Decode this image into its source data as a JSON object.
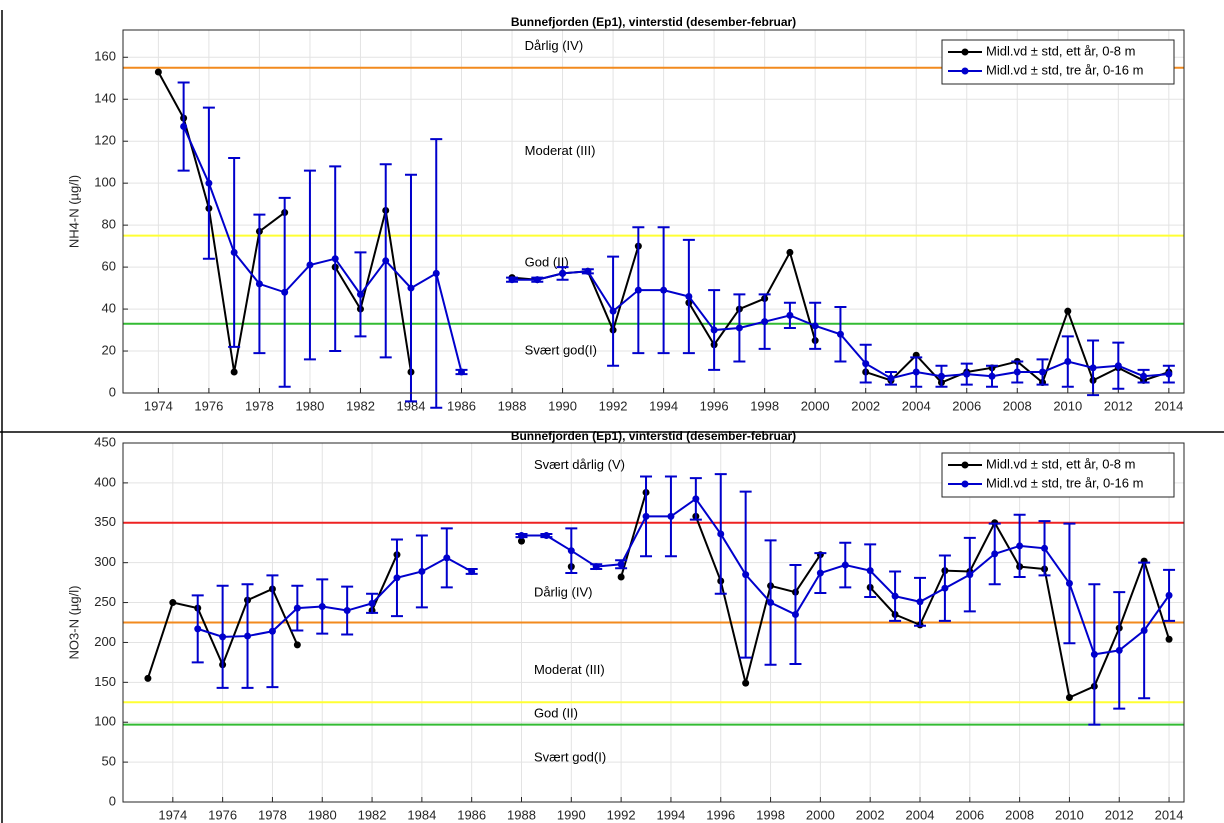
{
  "chart_data": [
    {
      "type": "line",
      "title": "Bunnefjorden (Ep1), vinterstid (desember-februar)",
      "ylabel": "NH4-N (µg/l)",
      "x": [
        1973,
        1974,
        1975,
        1976,
        1977,
        1978,
        1979,
        1980,
        1981,
        1982,
        1983,
        1984,
        1985,
        1986,
        1987,
        1988,
        1989,
        1990,
        1991,
        1992,
        1993,
        1994,
        1995,
        1996,
        1997,
        1998,
        1999,
        2000,
        2001,
        2002,
        2003,
        2004,
        2005,
        2006,
        2007,
        2008,
        2009,
        2010,
        2011,
        2012,
        2013,
        2014
      ],
      "series": [
        {
          "name": "Midl.vd ± std, ett år, 0-8 m",
          "color": "#000000",
          "values": [
            null,
            153,
            131,
            88,
            10,
            77,
            86,
            null,
            60,
            40,
            87,
            10,
            null,
            null,
            null,
            55,
            54,
            57,
            58,
            30,
            70,
            null,
            43,
            23,
            40,
            45,
            67,
            25,
            null,
            10,
            6,
            18,
            5,
            10,
            12,
            15,
            5,
            39,
            6,
            12,
            6,
            10
          ]
        },
        {
          "name": "Midl.vd ± std, tre år, 0-16 m",
          "color": "#0000cc",
          "values": [
            null,
            null,
            127,
            100,
            67,
            52,
            48,
            61,
            64,
            47,
            63,
            50,
            57,
            10,
            null,
            54,
            54,
            57,
            58,
            39,
            49,
            49,
            46,
            30,
            31,
            34,
            37,
            32,
            28,
            14,
            7,
            10,
            8,
            9,
            8,
            10,
            10,
            15,
            12,
            13,
            8,
            9
          ],
          "errors": [
            null,
            null,
            21,
            36,
            45,
            33,
            45,
            45,
            44,
            20,
            46,
            54,
            64,
            1,
            null,
            1,
            1,
            3,
            1,
            26,
            30,
            30,
            27,
            19,
            16,
            13,
            6,
            11,
            13,
            9,
            3,
            7,
            5,
            5,
            5,
            5,
            6,
            12,
            13,
            11,
            3,
            4
          ]
        }
      ],
      "hlines": [
        {
          "value": 155,
          "color": "#f28a1e"
        },
        {
          "value": 75,
          "color": "#ffff33"
        },
        {
          "value": 33,
          "color": "#33bb33"
        }
      ],
      "annotations": [
        {
          "text": "Dårlig (IV)",
          "x": 1988.5,
          "y": 165
        },
        {
          "text": "Moderat (III)",
          "x": 1988.5,
          "y": 115
        },
        {
          "text": "God (II)",
          "x": 1988.5,
          "y": 62
        },
        {
          "text": "Svært god(I)",
          "x": 1988.5,
          "y": 20
        }
      ],
      "xlim": [
        1972.6,
        2014.6
      ],
      "xticks": [
        1974,
        1976,
        1978,
        1980,
        1982,
        1984,
        1986,
        1988,
        1990,
        1992,
        1994,
        1996,
        1998,
        2000,
        2002,
        2004,
        2006,
        2008,
        2010,
        2012,
        2014
      ],
      "ylim": [
        0,
        173
      ],
      "yticks": [
        0,
        20,
        40,
        60,
        80,
        100,
        120,
        140,
        160
      ],
      "grid": true,
      "legend": "upper right"
    },
    {
      "type": "line",
      "title": "Bunnefjorden (Ep1), vinterstid (desember-februar)",
      "ylabel": "NO3-N (µg/l)",
      "x": [
        1973,
        1974,
        1975,
        1976,
        1977,
        1978,
        1979,
        1980,
        1981,
        1982,
        1983,
        1984,
        1985,
        1986,
        1987,
        1988,
        1989,
        1990,
        1991,
        1992,
        1993,
        1994,
        1995,
        1996,
        1997,
        1998,
        1999,
        2000,
        2001,
        2002,
        2003,
        2004,
        2005,
        2006,
        2007,
        2008,
        2009,
        2010,
        2011,
        2012,
        2013,
        2014
      ],
      "series": [
        {
          "name": "Midl.vd ± std, ett år, 0-8 m",
          "color": "#000000",
          "values": [
            155,
            250,
            243,
            172,
            253,
            267,
            197,
            null,
            null,
            240,
            310,
            null,
            null,
            null,
            null,
            327,
            null,
            295,
            null,
            282,
            388,
            null,
            358,
            277,
            149,
            271,
            263,
            310,
            null,
            269,
            235,
            222,
            290,
            289,
            350,
            295,
            292,
            131,
            145,
            218,
            302,
            204
          ]
        },
        {
          "name": "Midl.vd ± std, tre år, 0-16 m",
          "color": "#0000cc",
          "values": [
            null,
            null,
            217,
            207,
            208,
            214,
            243,
            245,
            240,
            249,
            281,
            289,
            306,
            289,
            null,
            334,
            334,
            315,
            295,
            298,
            358,
            358,
            380,
            336,
            285,
            250,
            235,
            287,
            297,
            290,
            258,
            251,
            268,
            285,
            311,
            321,
            318,
            274,
            185,
            190,
            215,
            259
          ],
          "errors": [
            null,
            null,
            42,
            64,
            65,
            70,
            28,
            34,
            30,
            12,
            48,
            45,
            37,
            3,
            null,
            2,
            2,
            28,
            3,
            5,
            50,
            50,
            26,
            75,
            104,
            78,
            62,
            25,
            28,
            33,
            31,
            30,
            41,
            46,
            38,
            39,
            34,
            75,
            88,
            73,
            85,
            32
          ]
        }
      ],
      "hlines": [
        {
          "value": 350,
          "color": "#ee2222"
        },
        {
          "value": 225,
          "color": "#f28a1e"
        },
        {
          "value": 125,
          "color": "#ffff33"
        },
        {
          "value": 97,
          "color": "#33bb33"
        }
      ],
      "annotations": [
        {
          "text": "Svært dårlig (V)",
          "x": 1988.5,
          "y": 422
        },
        {
          "text": "Dårlig (IV)",
          "x": 1988.5,
          "y": 262
        },
        {
          "text": "Moderat (III)",
          "x": 1988.5,
          "y": 165
        },
        {
          "text": "God (II)",
          "x": 1988.5,
          "y": 110
        },
        {
          "text": "Svært god(I)",
          "x": 1988.5,
          "y": 55
        }
      ],
      "xlim": [
        1972.0,
        2014.6
      ],
      "xticks": [
        1974,
        1976,
        1978,
        1980,
        1982,
        1984,
        1986,
        1988,
        1990,
        1992,
        1994,
        1996,
        1998,
        2000,
        2002,
        2004,
        2006,
        2008,
        2010,
        2012,
        2014
      ],
      "ylim": [
        0,
        450
      ],
      "yticks": [
        0,
        50,
        100,
        150,
        200,
        250,
        300,
        350,
        400,
        450
      ],
      "grid": true,
      "legend": "upper right"
    }
  ]
}
